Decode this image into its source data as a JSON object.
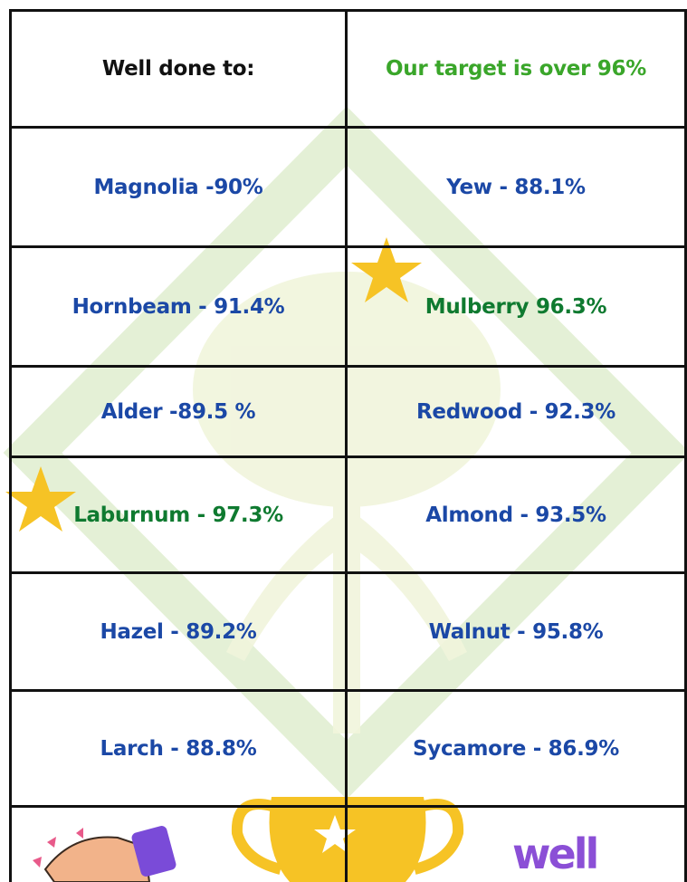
{
  "table": {
    "header": [
      "Well done to:",
      "Our target is over 96%"
    ],
    "rows": [
      [
        "Magnolia -90%",
        "Yew - 88.1%"
      ],
      [
        "Hornbeam - 91.4%",
        "Mulberry 96.3%"
      ],
      [
        "Alder -89.5 %",
        "Redwood - 92.3%"
      ],
      [
        "Laburnum - 97.3%",
        "Almond - 93.5%"
      ],
      [
        "Hazel - 89.2%",
        "Walnut - 95.8%"
      ],
      [
        "Larch - 88.8%",
        "Sycamore - 86.9%"
      ]
    ]
  },
  "footer": {
    "image_text": "well"
  }
}
